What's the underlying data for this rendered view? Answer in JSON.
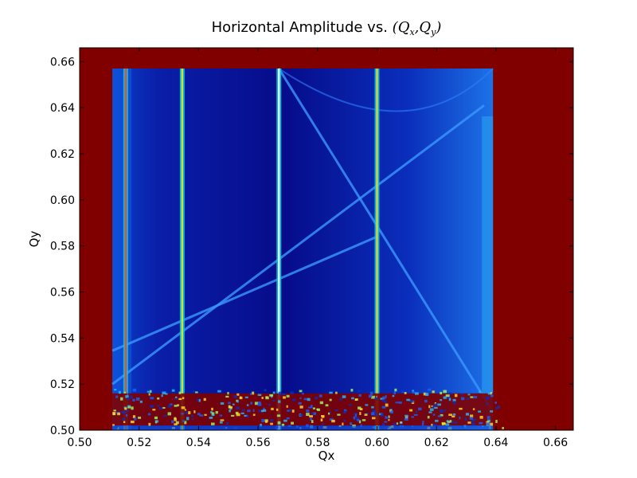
{
  "chart_data": {
    "type": "heatmap",
    "title": "Horizontal Amplitude vs. (Q",
    "title_math": {
      "open": "(",
      "q1": "Q",
      "s1": "x",
      "comma": ",",
      "q2": "Q",
      "s2": "y",
      "close": ")"
    },
    "title_prefix": "Horizontal Amplitude vs. ",
    "xlabel": "Qx",
    "ylabel": "Qy",
    "xlim": [
      0.5,
      0.666
    ],
    "ylim": [
      0.5,
      0.666
    ],
    "xticks": [
      "0.50",
      "0.52",
      "0.54",
      "0.56",
      "0.58",
      "0.60",
      "0.62",
      "0.64",
      "0.66"
    ],
    "yticks": [
      "0.50",
      "0.52",
      "0.54",
      "0.56",
      "0.58",
      "0.60",
      "0.62",
      "0.64",
      "0.66"
    ],
    "colormap": "jet",
    "background_color": "#800000",
    "data_region": {
      "x": [
        0.511,
        0.639
      ],
      "y": [
        0.5,
        0.657
      ]
    },
    "vertical_resonance_lines_qx": [
      0.5155,
      0.5345,
      0.567,
      0.6
    ],
    "diagonal_resonance_lines": [
      {
        "from": [
          0.511,
          0.52
        ],
        "to": [
          0.636,
          0.641
        ]
      },
      {
        "from": [
          0.567,
          0.657
        ],
        "to": [
          0.639,
          0.508
        ]
      },
      {
        "from": [
          0.511,
          0.5345
        ],
        "to": [
          0.6,
          0.584
        ]
      }
    ],
    "noise_band_qy": [
      0.502,
      0.516
    ]
  }
}
